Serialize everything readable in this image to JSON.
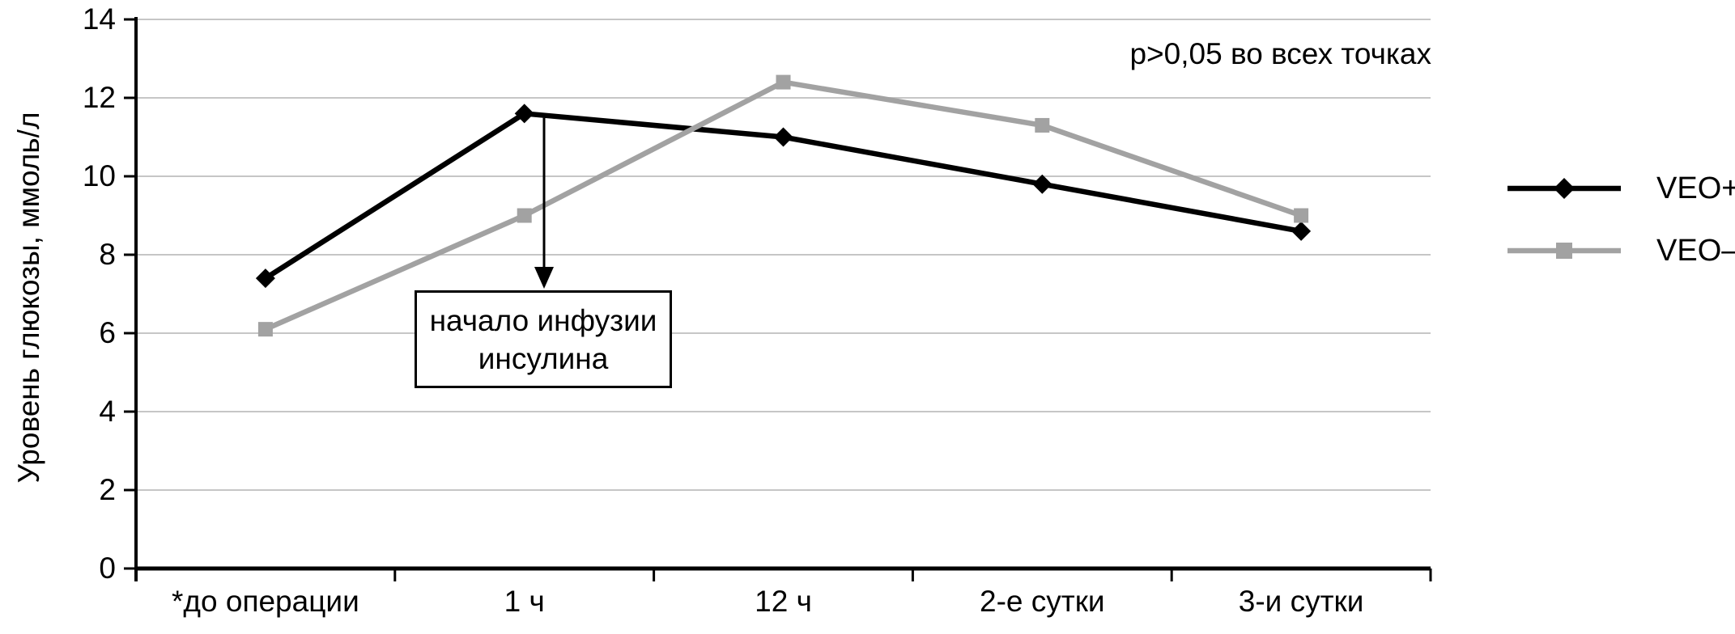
{
  "colors": {
    "background": "#ffffff",
    "axis": "#000000",
    "grid": "#c6c6c6",
    "veo_plus": "#000000",
    "veo_minus": "#a2a2a2",
    "annotation_border": "#000000",
    "text": "#000000"
  },
  "chart_data": {
    "type": "line",
    "title": "",
    "xlabel": "",
    "ylabel": "Уровень глюкозы, ммоль/л",
    "ylim": [
      0,
      14
    ],
    "yticks": [
      0,
      2,
      4,
      6,
      8,
      10,
      12,
      14
    ],
    "grid": true,
    "legend_position": "right",
    "categories": [
      "*до операции",
      "1 ч",
      "12 ч",
      "2-е сутки",
      "3-и сутки"
    ],
    "series": [
      {
        "name": "VEO+",
        "color": "#000000",
        "marker": "diamond",
        "values": [
          7.4,
          11.6,
          11.0,
          9.8,
          8.6
        ]
      },
      {
        "name": "VEO–",
        "color": "#a2a2a2",
        "marker": "square",
        "values": [
          6.1,
          9.0,
          12.4,
          11.3,
          9.0
        ]
      }
    ],
    "annotations": {
      "p_note": "p>0,05 во всех точках",
      "callout": {
        "lines": [
          "начало инфузии",
          "инсулина"
        ],
        "target_series": "VEO+",
        "target_category_index": 1
      }
    }
  }
}
